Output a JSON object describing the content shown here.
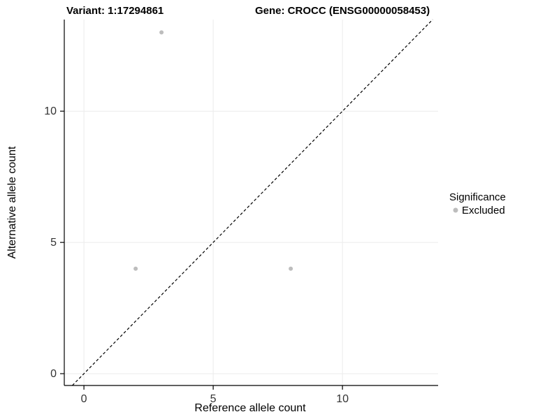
{
  "header": {
    "title_left": "Variant: 1:17294861",
    "title_right": "Gene: CROCC (ENSG00000058453)"
  },
  "chart_data": {
    "type": "scatter",
    "title": "Variant: 1:17294861 / Gene: CROCC (ENSG00000058453)",
    "xlabel": "Reference allele count",
    "ylabel": "Alternative allele count",
    "xlim": [
      -0.76,
      13.7
    ],
    "ylim": [
      -0.45,
      13.49
    ],
    "xticks": [
      0,
      5,
      10
    ],
    "yticks": [
      0,
      5,
      10
    ],
    "grid": true,
    "grid_color": "#ebebeb",
    "axis_color": "#000000",
    "point_color": "#bdbdbd",
    "point_radius": 3,
    "points": [
      {
        "x": 3,
        "y": 13,
        "series": "Excluded"
      },
      {
        "x": 2,
        "y": 4,
        "series": "Excluded"
      },
      {
        "x": 8,
        "y": 4,
        "series": "Excluded"
      }
    ],
    "identity_line": {
      "style": "dashed",
      "slope": 1,
      "intercept": 0,
      "color": "#000000"
    },
    "legend": {
      "position": "right",
      "title": "Significance",
      "entries": [
        {
          "label": "Excluded",
          "color": "#bdbdbd"
        }
      ]
    }
  }
}
